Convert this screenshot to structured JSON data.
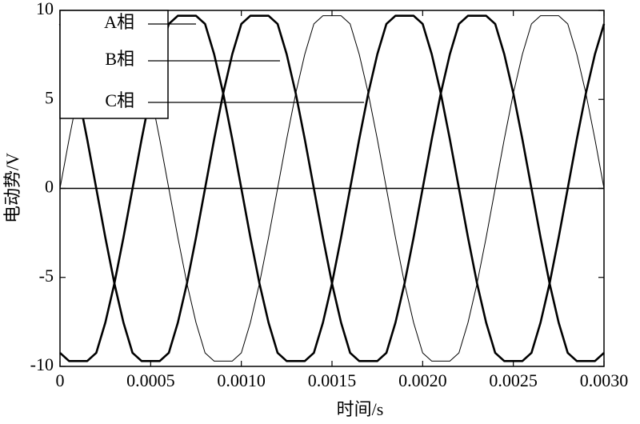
{
  "chart_data": {
    "type": "line",
    "x_label": "时间/s",
    "y_label": "电动势/V",
    "x": [
      0,
      5e-05,
      0.0001,
      0.00015,
      0.0002,
      0.00025,
      0.0003,
      0.00035,
      0.0004,
      0.00045,
      0.0005,
      0.00055,
      0.0006,
      0.00065,
      0.0007,
      0.00075,
      0.0008,
      0.00085,
      0.0009,
      0.00095,
      0.001,
      0.00105,
      0.0011,
      0.00115,
      0.0012,
      0.00125,
      0.0013,
      0.00135,
      0.0014,
      0.00145,
      0.0015,
      0.00155,
      0.0016,
      0.00165,
      0.0017,
      0.00175,
      0.0018,
      0.00185,
      0.0019,
      0.00195,
      0.002,
      0.00205,
      0.0021,
      0.00215,
      0.0022,
      0.00225,
      0.0023,
      0.00235,
      0.0024,
      0.00245,
      0.0025,
      0.00255,
      0.0026,
      0.00265,
      0.0027,
      0.00275,
      0.0028,
      0.00285,
      0.0029,
      0.00295,
      0.003
    ],
    "series": [
      {
        "name": "A相",
        "color": "#000000",
        "line_width": 2.6,
        "values": [
          -9.24,
          -9.7,
          -9.7,
          -9.7,
          -9.24,
          -7.54,
          -5.34,
          -2.76,
          0,
          2.76,
          5.34,
          7.54,
          9.24,
          9.7,
          9.7,
          9.7,
          9.24,
          7.54,
          5.34,
          2.76,
          0,
          -2.76,
          -5.34,
          -7.54,
          -9.24,
          -9.7,
          -9.7,
          -9.7,
          -9.24,
          -7.54,
          -5.34,
          -2.76,
          0,
          2.76,
          5.34,
          7.54,
          9.24,
          9.7,
          9.7,
          9.7,
          9.24,
          7.54,
          5.34,
          2.76,
          0,
          -2.76,
          -5.34,
          -7.54,
          -9.24,
          -9.7,
          -9.7,
          -9.7,
          -9.24,
          -7.54,
          -5.34,
          -2.76,
          0,
          2.76,
          5.34,
          7.54,
          9.24
        ]
      },
      {
        "name": "B相",
        "color": "#000000",
        "line_width": 2.6,
        "values": [
          9.24,
          7.54,
          5.34,
          2.76,
          0,
          -2.76,
          -5.34,
          -7.54,
          -9.24,
          -9.7,
          -9.7,
          -9.7,
          -9.24,
          -7.54,
          -5.34,
          -2.76,
          0,
          2.76,
          5.34,
          7.54,
          9.24,
          9.7,
          9.7,
          9.7,
          9.24,
          7.54,
          5.34,
          2.76,
          0,
          -2.76,
          -5.34,
          -7.54,
          -9.24,
          -9.7,
          -9.7,
          -9.7,
          -9.24,
          -7.54,
          -5.34,
          -2.76,
          0,
          2.76,
          5.34,
          7.54,
          9.24,
          9.7,
          9.7,
          9.7,
          9.24,
          7.54,
          5.34,
          2.76,
          0,
          -2.76,
          -5.34,
          -7.54,
          -9.24,
          -9.7,
          -9.7,
          -9.7,
          -9.24
        ]
      },
      {
        "name": "C相",
        "color": "#000000",
        "line_width": 1,
        "values": [
          0,
          2.76,
          5.34,
          7.54,
          9.24,
          9.7,
          9.7,
          9.7,
          9.24,
          7.54,
          5.34,
          2.76,
          0,
          -2.76,
          -5.34,
          -7.54,
          -9.24,
          -9.7,
          -9.7,
          -9.7,
          -9.24,
          -7.54,
          -5.34,
          -2.76,
          0,
          2.76,
          5.34,
          7.54,
          9.24,
          9.7,
          9.7,
          9.7,
          9.24,
          7.54,
          5.34,
          2.76,
          0,
          -2.76,
          -5.34,
          -7.54,
          -9.24,
          -9.7,
          -9.7,
          -9.7,
          -9.24,
          -7.54,
          -5.34,
          -2.76,
          0,
          2.76,
          5.34,
          7.54,
          9.24,
          9.7,
          9.7,
          9.7,
          9.24,
          7.54,
          5.34,
          2.76,
          0
        ]
      }
    ],
    "xlim": [
      0,
      0.003
    ],
    "xticks": [
      0,
      0.0005,
      {
        "value": 0.001,
        "label": "0.0010"
      },
      {
        "value": 0.0015,
        "label": "0.0015"
      },
      {
        "value": 0.002,
        "label": "0.0020"
      },
      {
        "value": 0.0025,
        "label": "0.0025"
      },
      {
        "value": 0.003,
        "label": "0.0030"
      }
    ],
    "ylim": [
      -10,
      10
    ],
    "yticks": [
      -10,
      -5,
      0,
      5,
      10
    ],
    "legend": "upper left"
  }
}
